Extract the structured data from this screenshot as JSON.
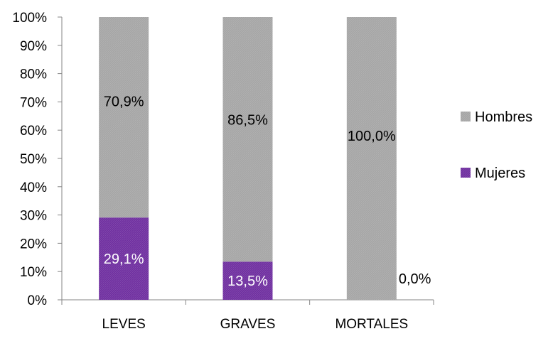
{
  "chart_data": {
    "type": "bar",
    "stacked": true,
    "percent": true,
    "categories": [
      "LEVES",
      "GRAVES",
      "MORTALES"
    ],
    "series": [
      {
        "name": "Mujeres",
        "values": [
          29.1,
          13.5,
          0.0
        ],
        "labels": [
          "29,1%",
          "13,5%",
          "0,0%"
        ],
        "color": "#7030a0",
        "label_color": "#ffffff"
      },
      {
        "name": "Hombres",
        "values": [
          70.9,
          86.5,
          100.0
        ],
        "labels": [
          "70,9%",
          "86,5%",
          "100,0%"
        ],
        "color": "#a6a6a6",
        "label_color": "#000000"
      }
    ],
    "ylim": [
      0,
      100
    ],
    "y_ticks": [
      0,
      10,
      20,
      30,
      40,
      50,
      60,
      70,
      80,
      90,
      100
    ],
    "y_tick_labels": [
      "0%",
      "10%",
      "20%",
      "30%",
      "40%",
      "50%",
      "60%",
      "70%",
      "80%",
      "90%",
      "100%"
    ],
    "title": "",
    "xlabel": "",
    "ylabel": "",
    "grid": false,
    "legend": {
      "placement": "right",
      "entries": [
        "Hombres",
        "Mujeres"
      ]
    }
  }
}
